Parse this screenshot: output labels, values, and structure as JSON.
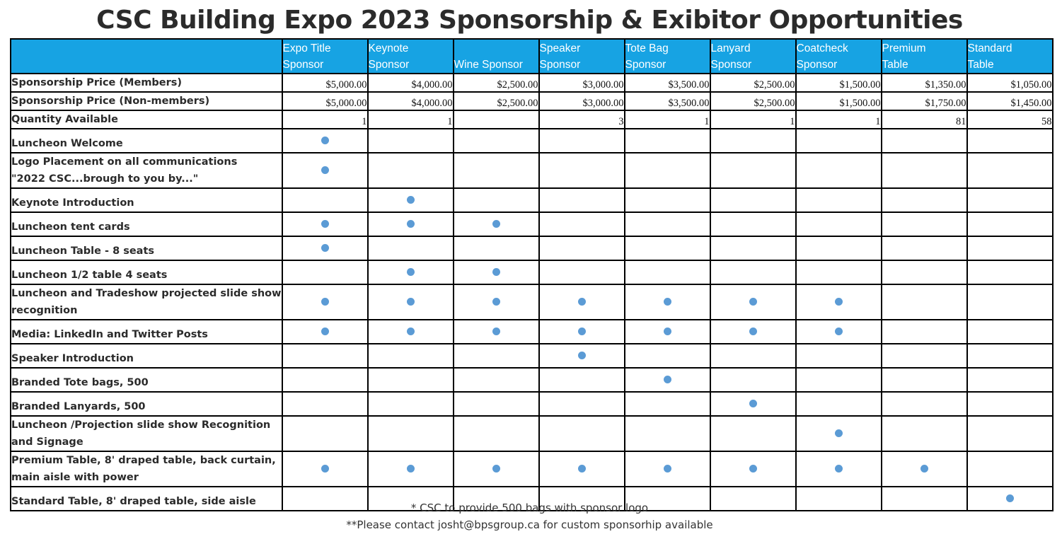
{
  "title": "CSC Building Expo 2023 Sponsorship & Exibitor Opportunities",
  "columns": [
    {
      "line1": "Expo Title",
      "line2": "Sponsor"
    },
    {
      "line1": "Keynote",
      "line2": "Sponsor"
    },
    {
      "line1": "",
      "line2": "Wine Sponsor"
    },
    {
      "line1": "Speaker",
      "line2": "Sponsor"
    },
    {
      "line1": "Tote Bag",
      "line2": "Sponsor"
    },
    {
      "line1": "Lanyard",
      "line2": "Sponsor"
    },
    {
      "line1": "Coatcheck",
      "line2": "Sponsor"
    },
    {
      "line1": "Premium",
      "line2": "Table"
    },
    {
      "line1": "Standard",
      "line2": "Table"
    }
  ],
  "price_rows": [
    {
      "label": "Sponsorship Price (Members)",
      "values": [
        "$5,000.00",
        "$4,000.00",
        "$2,500.00",
        "$3,000.00",
        "$3,500.00",
        "$2,500.00",
        "$1,500.00",
        "$1,350.00",
        "$1,050.00"
      ]
    },
    {
      "label": "Sponsorship Price (Non-members)",
      "values": [
        "$5,000.00",
        "$4,000.00",
        "$2,500.00",
        "$3,000.00",
        "$3,500.00",
        "$2,500.00",
        "$1,500.00",
        "$1,750.00",
        "$1,450.00"
      ]
    },
    {
      "label": "Quantity Available",
      "values": [
        "1",
        "1",
        "",
        "3",
        "1",
        "1",
        "1",
        "81",
        "58"
      ]
    }
  ],
  "benefit_rows": [
    {
      "line1": "Luncheon Welcome",
      "line2": "",
      "included": [
        1,
        0,
        0,
        0,
        0,
        0,
        0,
        0,
        0
      ]
    },
    {
      "line1": "Logo Placement on all communications",
      "line2": "\"2022 CSC...brough to you by...\"",
      "included": [
        1,
        0,
        0,
        0,
        0,
        0,
        0,
        0,
        0
      ]
    },
    {
      "line1": "Keynote Introduction",
      "line2": "",
      "included": [
        0,
        1,
        0,
        0,
        0,
        0,
        0,
        0,
        0
      ]
    },
    {
      "line1": "Luncheon tent cards",
      "line2": "",
      "included": [
        1,
        1,
        1,
        0,
        0,
        0,
        0,
        0,
        0
      ]
    },
    {
      "line1": "Luncheon Table - 8 seats",
      "line2": "",
      "included": [
        1,
        0,
        0,
        0,
        0,
        0,
        0,
        0,
        0
      ]
    },
    {
      "line1": "Luncheon 1/2 table 4 seats",
      "line2": "",
      "included": [
        0,
        1,
        1,
        0,
        0,
        0,
        0,
        0,
        0
      ]
    },
    {
      "line1": "Luncheon and Tradeshow projected slide show",
      "line2": "recognition",
      "included": [
        1,
        1,
        1,
        1,
        1,
        1,
        1,
        0,
        0
      ]
    },
    {
      "line1": "Media: LinkedIn and Twitter Posts",
      "line2": "",
      "included": [
        1,
        1,
        1,
        1,
        1,
        1,
        1,
        0,
        0
      ]
    },
    {
      "line1": "Speaker Introduction",
      "line2": "",
      "included": [
        0,
        0,
        0,
        1,
        0,
        0,
        0,
        0,
        0
      ]
    },
    {
      "line1": "Branded Tote bags, 500",
      "line2": "",
      "included": [
        0,
        0,
        0,
        0,
        1,
        0,
        0,
        0,
        0
      ]
    },
    {
      "line1": "Branded Lanyards, 500",
      "line2": "",
      "included": [
        0,
        0,
        0,
        0,
        0,
        1,
        0,
        0,
        0
      ]
    },
    {
      "line1": "Luncheon /Projection slide show Recognition",
      "line2": "and Signage",
      "included": [
        0,
        0,
        0,
        0,
        0,
        0,
        1,
        0,
        0
      ]
    },
    {
      "line1": "Premium Table, 8' draped table, back curtain,",
      "line2": "main aisle with power",
      "included": [
        1,
        1,
        1,
        1,
        1,
        1,
        1,
        1,
        0
      ]
    },
    {
      "line1": "Standard Table, 8' draped table, side aisle",
      "line2": "",
      "included": [
        0,
        0,
        0,
        0,
        0,
        0,
        0,
        0,
        1
      ]
    }
  ],
  "notes": [
    "* CSC to provide 500 bags with sponsor logo",
    "**Please contact josht@bpsgroup.ca for custom sponsorhip available"
  ],
  "colors": {
    "header_bg": "#17a3e3",
    "dot": "#5b9bd5",
    "border": "#000000"
  },
  "icons": {
    "included_marker": "bullet-dot-icon"
  }
}
